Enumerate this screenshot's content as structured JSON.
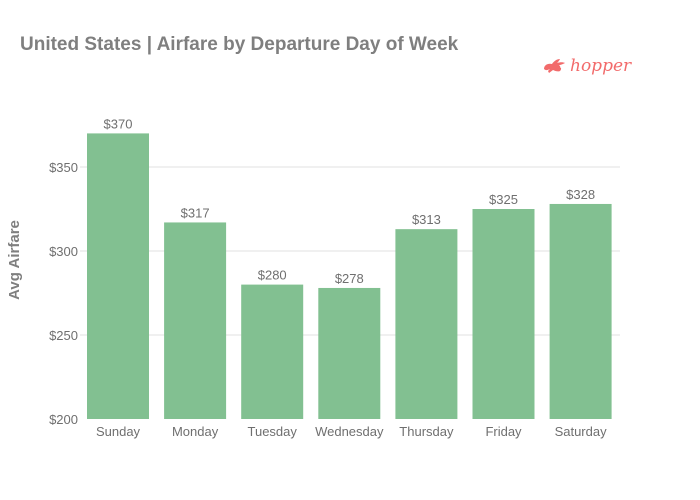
{
  "brand": {
    "name": "hopper",
    "icon": "rabbit-icon",
    "color": "#f26b6b"
  },
  "chart_data": {
    "type": "bar",
    "title": "United States | Airfare by Departure Day of Week",
    "xlabel": "",
    "ylabel": "Avg Airfare",
    "categories": [
      "Sunday",
      "Monday",
      "Tuesday",
      "Wednesday",
      "Thursday",
      "Friday",
      "Saturday"
    ],
    "values": [
      370,
      317,
      280,
      278,
      313,
      325,
      328
    ],
    "data_labels": [
      "$370",
      "$317",
      "$280",
      "$278",
      "$313",
      "$325",
      "$328"
    ],
    "ylim": [
      200,
      370
    ],
    "yticks": [
      200,
      250,
      300,
      350
    ],
    "ytick_labels": [
      "$200",
      "$250",
      "$300",
      "$350"
    ],
    "grid": true,
    "legend": "none",
    "bar_color": "#82c091",
    "grid_color": "#e0e0e0"
  }
}
